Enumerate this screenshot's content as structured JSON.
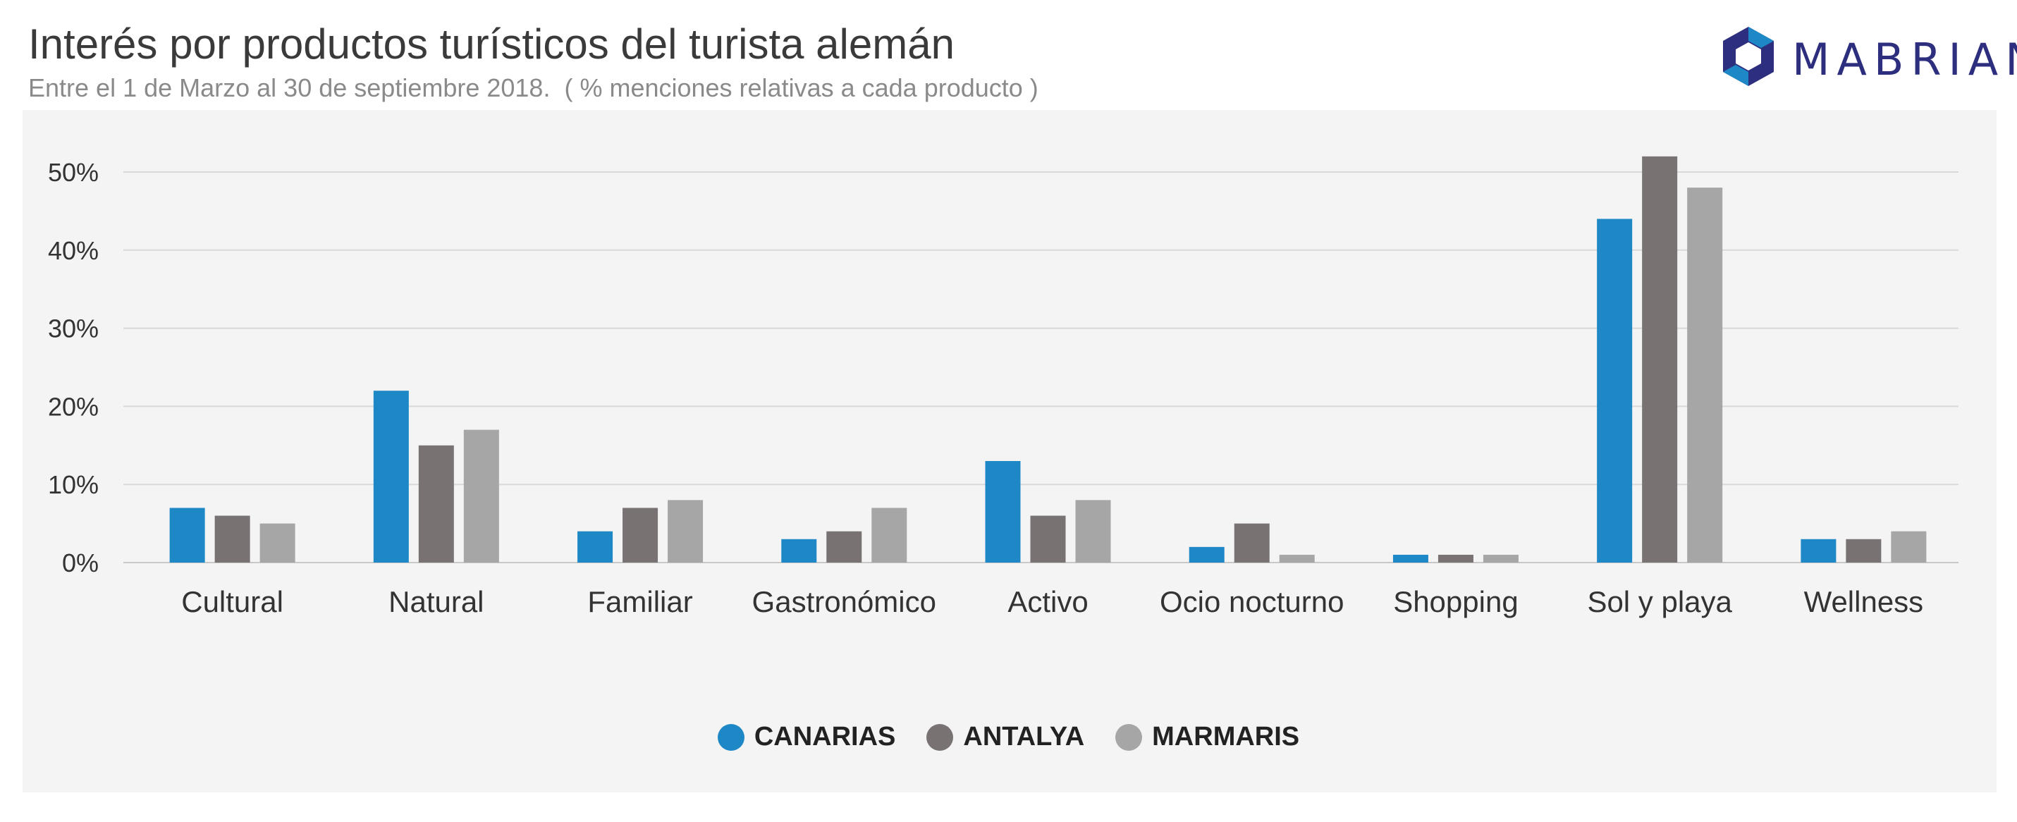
{
  "header": {
    "title": "Interés por productos turísticos del turista alemán",
    "subtitle": "Entre el 1 de Marzo al 30 de septiembre 2018.  ( % menciones relativas a cada producto )"
  },
  "logo": {
    "text": "MABRIAN",
    "icon": "hexagon-logo-icon",
    "colors": {
      "primary": "#2d2f7e",
      "accent": "#1e88c7"
    }
  },
  "chart_data": {
    "type": "bar",
    "title": "",
    "xlabel": "",
    "ylabel": "",
    "ylim": [
      0,
      55
    ],
    "ytick_values": [
      0,
      10,
      20,
      30,
      40,
      50
    ],
    "ytick_labels": [
      "0%",
      "10%",
      "20%",
      "30%",
      "40%",
      "50%"
    ],
    "grid": true,
    "legend_position": "bottom-center",
    "categories": [
      "Cultural",
      "Natural",
      "Familiar",
      "Gastronómico",
      "Activo",
      "Ocio nocturno",
      "Shopping",
      "Sol y playa",
      "Wellness"
    ],
    "series": [
      {
        "name": "CANARIAS",
        "color": "#1e88c7",
        "values": [
          7,
          22,
          4,
          3,
          13,
          2,
          1,
          44,
          3
        ]
      },
      {
        "name": "ANTALYA",
        "color": "#787273",
        "values": [
          6,
          15,
          7,
          4,
          6,
          5,
          1,
          52,
          3
        ]
      },
      {
        "name": "MARMARIS",
        "color": "#a6a6a6",
        "values": [
          5,
          17,
          8,
          7,
          8,
          1,
          1,
          48,
          4
        ]
      }
    ]
  }
}
